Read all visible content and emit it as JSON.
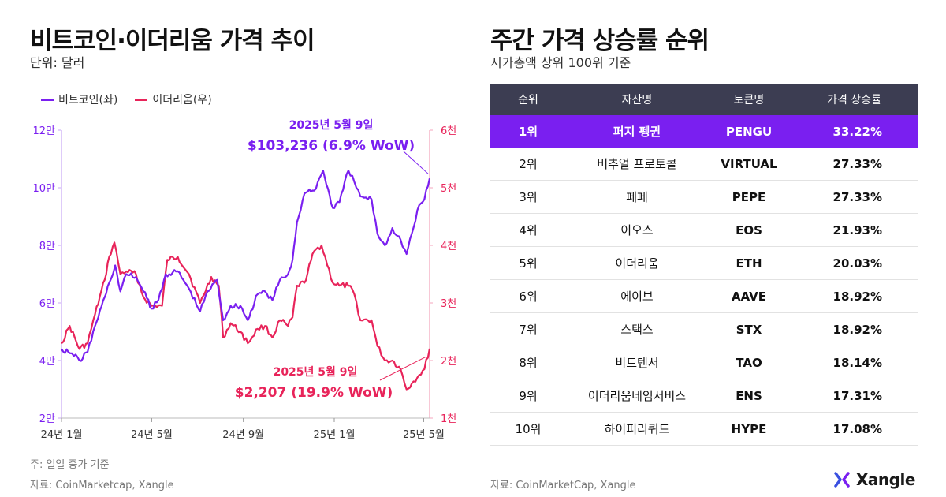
{
  "left_panel": {
    "title": "비트코인·이더리움 가격 추이",
    "unit": "단위: 달러",
    "note": "주: 일일 종가 기준",
    "source": "자료: CoinMarketcap, Xangle"
  },
  "right_panel": {
    "title": "주간 가격 상승률 순위",
    "subtitle": "시가총액 상위 100위 기준",
    "source": "자료: CoinMarketCap, Xangle",
    "headers": [
      "순위",
      "자산명",
      "토큰명",
      "가격 상승률"
    ],
    "rows": [
      {
        "rank": "1위",
        "name": "퍼지 펭귄",
        "token": "PENGU",
        "rate": "33.22%"
      },
      {
        "rank": "2위",
        "name": "버추얼 프로토콜",
        "token": "VIRTUAL",
        "rate": "27.33%"
      },
      {
        "rank": "3위",
        "name": "페페",
        "token": "PEPE",
        "rate": "27.33%"
      },
      {
        "rank": "4위",
        "name": "이오스",
        "token": "EOS",
        "rate": "21.93%"
      },
      {
        "rank": "5위",
        "name": "이더리움",
        "token": "ETH",
        "rate": "20.03%"
      },
      {
        "rank": "6위",
        "name": "에이브",
        "token": "AAVE",
        "rate": "18.92%"
      },
      {
        "rank": "7위",
        "name": "스택스",
        "token": "STX",
        "rate": "18.92%"
      },
      {
        "rank": "8위",
        "name": "비트텐서",
        "token": "TAO",
        "rate": "18.14%"
      },
      {
        "rank": "9위",
        "name": "이더리움네임서비스",
        "token": "ENS",
        "rate": "17.31%"
      },
      {
        "rank": "10위",
        "name": "하이퍼리퀴드",
        "token": "HYPE",
        "rate": "17.08%"
      }
    ]
  },
  "brand": {
    "name": "Xangle"
  },
  "colors": {
    "btc": "#7a1ff0",
    "eth": "#e8245a",
    "header": "#3c3d52",
    "highlight": "#7a1ff0"
  },
  "chart_data": {
    "type": "line",
    "x_ticks": [
      "24년 1월",
      "24년 5월",
      "24년 9월",
      "25년 1월",
      "25년 5월"
    ],
    "y_left_ticks": [
      "2만",
      "4만",
      "6만",
      "8만",
      "10만",
      "12만"
    ],
    "y_right_ticks": [
      "1천",
      "2천",
      "3천",
      "4천",
      "5천",
      "6천"
    ],
    "y_left_range": [
      20000,
      120000
    ],
    "y_right_range": [
      1000,
      6000
    ],
    "series": [
      {
        "name": "비트코인(좌)",
        "axis": "left",
        "points": [
          [
            "2024-01-01",
            44000
          ],
          [
            "2024-01-15",
            42500
          ],
          [
            "2024-01-25",
            40000
          ],
          [
            "2024-02-05",
            43000
          ],
          [
            "2024-02-15",
            52000
          ],
          [
            "2024-02-28",
            62000
          ],
          [
            "2024-03-05",
            67000
          ],
          [
            "2024-03-13",
            73000
          ],
          [
            "2024-03-20",
            64000
          ],
          [
            "2024-03-28",
            70000
          ],
          [
            "2024-04-10",
            69000
          ],
          [
            "2024-04-20",
            64000
          ],
          [
            "2024-05-01",
            58000
          ],
          [
            "2024-05-10",
            61000
          ],
          [
            "2024-05-20",
            70000
          ],
          [
            "2024-06-05",
            71000
          ],
          [
            "2024-06-20",
            65000
          ],
          [
            "2024-07-05",
            57000
          ],
          [
            "2024-07-15",
            64000
          ],
          [
            "2024-07-28",
            68000
          ],
          [
            "2024-08-05",
            54000
          ],
          [
            "2024-08-15",
            59000
          ],
          [
            "2024-08-28",
            59000
          ],
          [
            "2024-09-07",
            54000
          ],
          [
            "2024-09-20",
            63000
          ],
          [
            "2024-09-30",
            64000
          ],
          [
            "2024-10-10",
            61000
          ],
          [
            "2024-10-20",
            68000
          ],
          [
            "2024-10-31",
            70000
          ],
          [
            "2024-11-06",
            75000
          ],
          [
            "2024-11-12",
            88000
          ],
          [
            "2024-11-22",
            98000
          ],
          [
            "2024-12-05",
            99000
          ],
          [
            "2024-12-17",
            106000
          ],
          [
            "2024-12-30",
            93000
          ],
          [
            "2025-01-08",
            95000
          ],
          [
            "2025-01-20",
            106000
          ],
          [
            "2025-01-28",
            102000
          ],
          [
            "2025-02-05",
            97000
          ],
          [
            "2025-02-20",
            96000
          ],
          [
            "2025-02-28",
            84000
          ],
          [
            "2025-03-10",
            80000
          ],
          [
            "2025-03-20",
            86000
          ],
          [
            "2025-03-31",
            82000
          ],
          [
            "2025-04-08",
            77000
          ],
          [
            "2025-04-15",
            84000
          ],
          [
            "2025-04-25",
            94000
          ],
          [
            "2025-05-02",
            96000
          ],
          [
            "2025-05-09",
            103236
          ]
        ]
      },
      {
        "name": "이더리움(우)",
        "axis": "right",
        "points": [
          [
            "2024-01-01",
            2300
          ],
          [
            "2024-01-12",
            2600
          ],
          [
            "2024-01-25",
            2200
          ],
          [
            "2024-02-05",
            2300
          ],
          [
            "2024-02-15",
            2800
          ],
          [
            "2024-02-28",
            3400
          ],
          [
            "2024-03-05",
            3800
          ],
          [
            "2024-03-12",
            4050
          ],
          [
            "2024-03-20",
            3500
          ],
          [
            "2024-03-28",
            3550
          ],
          [
            "2024-04-10",
            3500
          ],
          [
            "2024-04-20",
            3100
          ],
          [
            "2024-05-01",
            2950
          ],
          [
            "2024-05-15",
            2950
          ],
          [
            "2024-05-22",
            3750
          ],
          [
            "2024-06-05",
            3800
          ],
          [
            "2024-06-20",
            3500
          ],
          [
            "2024-07-05",
            3000
          ],
          [
            "2024-07-20",
            3450
          ],
          [
            "2024-07-30",
            3300
          ],
          [
            "2024-08-05",
            2400
          ],
          [
            "2024-08-15",
            2650
          ],
          [
            "2024-08-28",
            2500
          ],
          [
            "2024-09-07",
            2300
          ],
          [
            "2024-09-20",
            2550
          ],
          [
            "2024-09-30",
            2600
          ],
          [
            "2024-10-10",
            2400
          ],
          [
            "2024-10-20",
            2700
          ],
          [
            "2024-10-31",
            2600
          ],
          [
            "2024-11-06",
            2750
          ],
          [
            "2024-11-12",
            3300
          ],
          [
            "2024-11-22",
            3350
          ],
          [
            "2024-12-05",
            3900
          ],
          [
            "2024-12-15",
            4000
          ],
          [
            "2024-12-30",
            3350
          ],
          [
            "2025-01-08",
            3300
          ],
          [
            "2025-01-20",
            3300
          ],
          [
            "2025-01-28",
            3150
          ],
          [
            "2025-02-05",
            2700
          ],
          [
            "2025-02-20",
            2700
          ],
          [
            "2025-02-28",
            2250
          ],
          [
            "2025-03-10",
            2000
          ],
          [
            "2025-03-20",
            2000
          ],
          [
            "2025-03-31",
            1850
          ],
          [
            "2025-04-08",
            1500
          ],
          [
            "2025-04-15",
            1600
          ],
          [
            "2025-04-25",
            1750
          ],
          [
            "2025-05-02",
            1850
          ],
          [
            "2025-05-09",
            2207
          ]
        ]
      }
    ],
    "annotations": [
      {
        "series": "비트코인(좌)",
        "date": "2025년 5월 9일",
        "value": "$103,236 (6.9% WoW)"
      },
      {
        "series": "이더리움(우)",
        "date": "2025년 5월 9일",
        "value": "$2,207 (19.9% WoW)"
      }
    ]
  }
}
